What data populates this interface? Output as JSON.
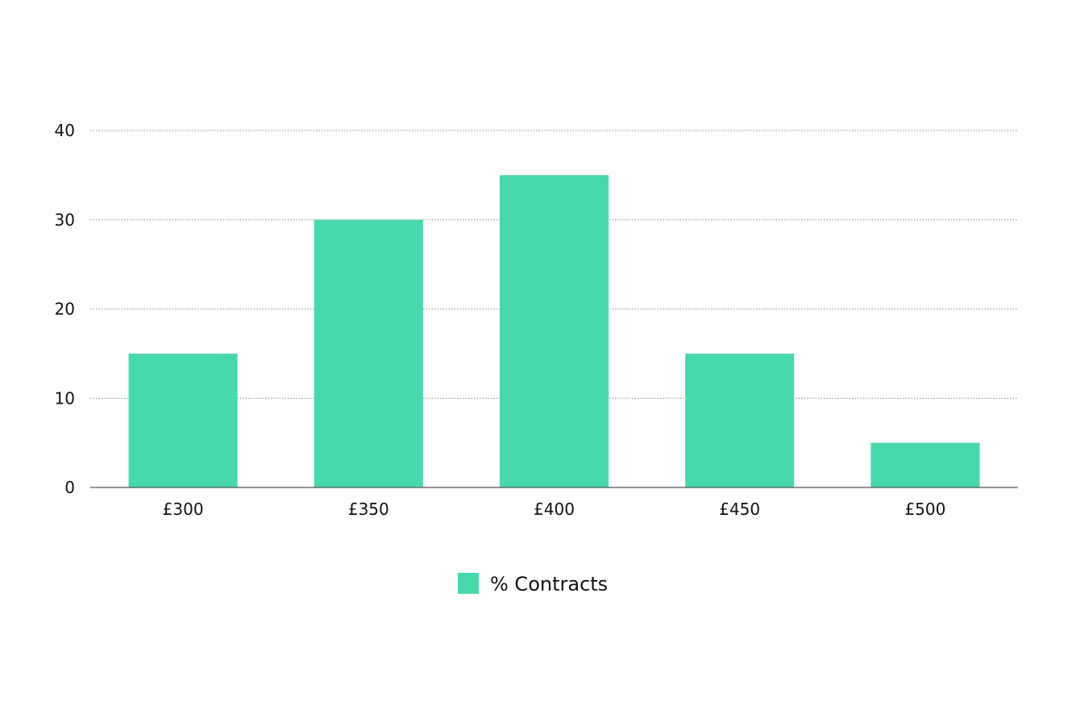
{
  "chart_data": {
    "type": "bar",
    "categories": [
      "£300",
      "£350",
      "£400",
      "£450",
      "£500"
    ],
    "series": [
      {
        "name": "% Contracts",
        "values": [
          15,
          30,
          35,
          15,
          5
        ],
        "color": "#48D8AE"
      }
    ],
    "yticks": [
      0,
      10,
      20,
      30,
      40
    ],
    "ylim": [
      0,
      40
    ],
    "title": "",
    "xlabel": "",
    "ylabel": "",
    "grid": true,
    "legend_position": "bottom-center"
  }
}
